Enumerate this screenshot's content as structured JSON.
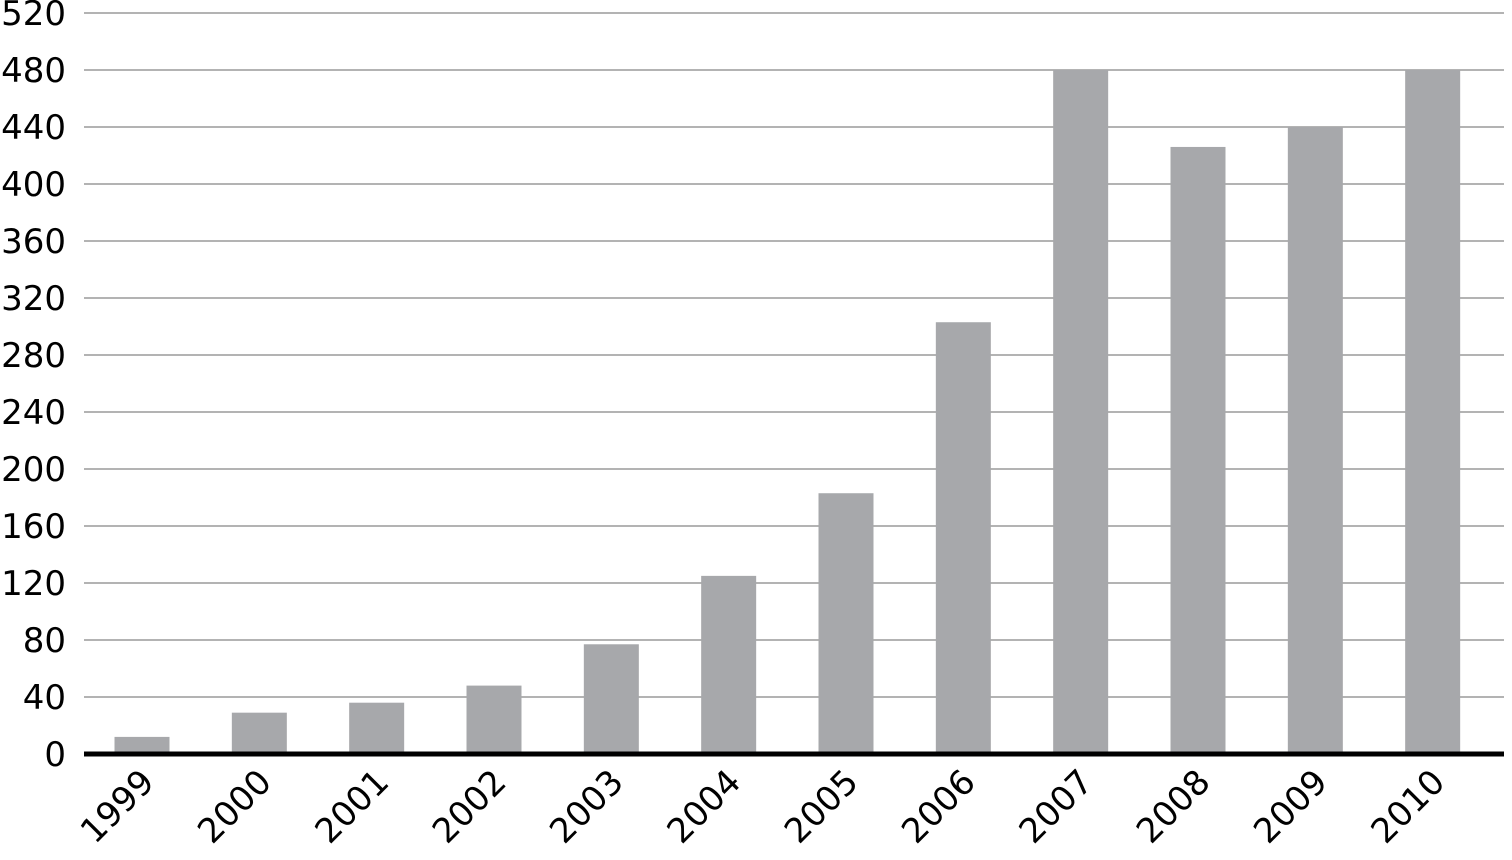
{
  "chart_data": {
    "type": "bar",
    "title": "",
    "xlabel": "",
    "ylabel": "",
    "categories": [
      "1999",
      "2000",
      "2001",
      "2002",
      "2003",
      "2004",
      "2005",
      "2006",
      "2007",
      "2008",
      "2009",
      "2010"
    ],
    "values": [
      12,
      29,
      36,
      48,
      77,
      125,
      183,
      303,
      480,
      426,
      440,
      480
    ],
    "ylim": [
      0,
      520
    ],
    "yticks": [
      0,
      40,
      80,
      120,
      160,
      200,
      240,
      280,
      320,
      360,
      400,
      440,
      480,
      520
    ],
    "grid": true,
    "legend": "none",
    "colors": {
      "bar": "#a7a8ab",
      "grid": "#9a9a9a",
      "axis": "#000000"
    }
  }
}
